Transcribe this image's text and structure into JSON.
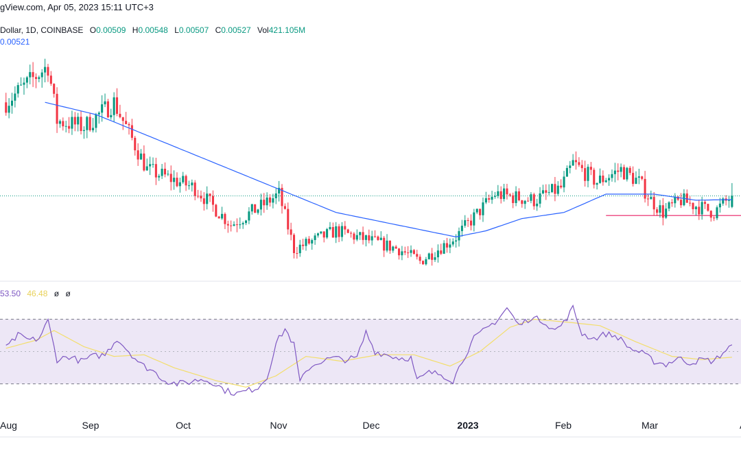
{
  "header": {
    "site_datetime": "gView.com, Apr 05, 2023 15:11 UTC+3"
  },
  "legend": {
    "symbol": "Dollar, 1D, COINBASE",
    "open_label": "O",
    "open": "0.00509",
    "high_label": "H",
    "high": "0.00548",
    "low_label": "L",
    "low": "0.00507",
    "close_label": "C",
    "close": "0.00527",
    "vol_label": "Vol",
    "vol": "421.105M",
    "ma_value": "0.00521"
  },
  "rsi_legend": {
    "rsi_value": "53.50",
    "ma_value": "46.48",
    "val3": "ø",
    "val4": "ø"
  },
  "colors": {
    "up": "#089981",
    "down": "#f23645",
    "ma_line": "#2962ff",
    "rsi_line": "#7e57c2",
    "rsi_ma_line": "#f3de6b",
    "rsi_band": "#ede7f6",
    "price_line": "#089981",
    "support_line": "#e91e63"
  },
  "chart_data": [
    {
      "type": "candlestick",
      "x_ticks": [
        "Aug",
        "Sep",
        "Oct",
        "Nov",
        "Dec",
        "2023",
        "Feb",
        "Mar",
        "Apr"
      ],
      "last_price": 0.00527,
      "moving_average_last": 0.00521,
      "support_level": 0.00495,
      "ohlc_last": {
        "open": 0.00509,
        "high": 0.00548,
        "low": 0.00507,
        "close": 0.00527,
        "volume": "421.105M"
      },
      "close_path": [
        {
          "day": 0,
          "close": 0.0068
        },
        {
          "day": 14,
          "close": 0.0074
        },
        {
          "day": 17,
          "close": 0.0065
        },
        {
          "day": 26,
          "close": 0.0064
        },
        {
          "day": 36,
          "close": 0.0068
        },
        {
          "day": 47,
          "close": 0.0057
        },
        {
          "day": 63,
          "close": 0.0054
        },
        {
          "day": 75,
          "close": 0.0048
        },
        {
          "day": 85,
          "close": 0.0051
        },
        {
          "day": 91,
          "close": 0.0053
        },
        {
          "day": 96,
          "close": 0.0044
        },
        {
          "day": 110,
          "close": 0.0047
        },
        {
          "day": 117,
          "close": 0.0046
        },
        {
          "day": 131,
          "close": 0.0044
        },
        {
          "day": 138,
          "close": 0.0042
        },
        {
          "day": 150,
          "close": 0.0046
        },
        {
          "day": 163,
          "close": 0.0053
        },
        {
          "day": 176,
          "close": 0.0052
        },
        {
          "day": 185,
          "close": 0.0054
        },
        {
          "day": 189,
          "close": 0.0058
        },
        {
          "day": 197,
          "close": 0.0055
        },
        {
          "day": 205,
          "close": 0.0057
        },
        {
          "day": 211,
          "close": 0.0055
        },
        {
          "day": 215,
          "close": 0.0052
        },
        {
          "day": 219,
          "close": 0.005
        },
        {
          "day": 225,
          "close": 0.0052
        },
        {
          "day": 236,
          "close": 0.005
        },
        {
          "day": 242,
          "close": 0.00527
        }
      ],
      "ma_path": [
        {
          "day": 13,
          "value": 0.0068
        },
        {
          "day": 30,
          "value": 0.0066
        },
        {
          "day": 50,
          "value": 0.0062
        },
        {
          "day": 70,
          "value": 0.0058
        },
        {
          "day": 90,
          "value": 0.0054
        },
        {
          "day": 110,
          "value": 0.005
        },
        {
          "day": 130,
          "value": 0.0048
        },
        {
          "day": 150,
          "value": 0.0046
        },
        {
          "day": 160,
          "value": 0.0047
        },
        {
          "day": 172,
          "value": 0.0049
        },
        {
          "day": 186,
          "value": 0.005
        },
        {
          "day": 200,
          "value": 0.0053
        },
        {
          "day": 216,
          "value": 0.0053
        },
        {
          "day": 230,
          "value": 0.0052
        },
        {
          "day": 242,
          "value": 0.00521
        }
      ]
    },
    {
      "type": "line",
      "indicator": "RSI",
      "levels": [
        70,
        50,
        30
      ],
      "rsi_last": 53.5,
      "rsi_ma_last": 46.48,
      "rsi_path": [
        {
          "day": 0,
          "value": 52
        },
        {
          "day": 4,
          "value": 60
        },
        {
          "day": 8,
          "value": 57
        },
        {
          "day": 11,
          "value": 58
        },
        {
          "day": 14,
          "value": 69
        },
        {
          "day": 17,
          "value": 45
        },
        {
          "day": 21,
          "value": 47
        },
        {
          "day": 25,
          "value": 44
        },
        {
          "day": 29,
          "value": 47
        },
        {
          "day": 33,
          "value": 48
        },
        {
          "day": 37,
          "value": 58
        },
        {
          "day": 41,
          "value": 50
        },
        {
          "day": 45,
          "value": 42
        },
        {
          "day": 49,
          "value": 38
        },
        {
          "day": 53,
          "value": 32
        },
        {
          "day": 57,
          "value": 30
        },
        {
          "day": 61,
          "value": 31
        },
        {
          "day": 65,
          "value": 33
        },
        {
          "day": 69,
          "value": 31
        },
        {
          "day": 73,
          "value": 26
        },
        {
          "day": 77,
          "value": 24
        },
        {
          "day": 81,
          "value": 26
        },
        {
          "day": 84,
          "value": 28
        },
        {
          "day": 87,
          "value": 34
        },
        {
          "day": 90,
          "value": 55
        },
        {
          "day": 93,
          "value": 64
        },
        {
          "day": 96,
          "value": 54
        },
        {
          "day": 98,
          "value": 31
        },
        {
          "day": 101,
          "value": 40
        },
        {
          "day": 105,
          "value": 44
        },
        {
          "day": 109,
          "value": 46
        },
        {
          "day": 113,
          "value": 45
        },
        {
          "day": 117,
          "value": 46
        },
        {
          "day": 120,
          "value": 62
        },
        {
          "day": 123,
          "value": 50
        },
        {
          "day": 127,
          "value": 48
        },
        {
          "day": 131,
          "value": 46
        },
        {
          "day": 135,
          "value": 46
        },
        {
          "day": 137,
          "value": 32
        },
        {
          "day": 141,
          "value": 37
        },
        {
          "day": 145,
          "value": 36
        },
        {
          "day": 149,
          "value": 32
        },
        {
          "day": 152,
          "value": 44
        },
        {
          "day": 156,
          "value": 58
        },
        {
          "day": 160,
          "value": 64
        },
        {
          "day": 164,
          "value": 70
        },
        {
          "day": 167,
          "value": 77
        },
        {
          "day": 171,
          "value": 66
        },
        {
          "day": 175,
          "value": 71
        },
        {
          "day": 179,
          "value": 69
        },
        {
          "day": 183,
          "value": 63
        },
        {
          "day": 186,
          "value": 68
        },
        {
          "day": 189,
          "value": 77
        },
        {
          "day": 192,
          "value": 61
        },
        {
          "day": 196,
          "value": 58
        },
        {
          "day": 200,
          "value": 61
        },
        {
          "day": 204,
          "value": 59
        },
        {
          "day": 208,
          "value": 52
        },
        {
          "day": 212,
          "value": 49
        },
        {
          "day": 216,
          "value": 44
        },
        {
          "day": 220,
          "value": 42
        },
        {
          "day": 224,
          "value": 46
        },
        {
          "day": 228,
          "value": 43
        },
        {
          "day": 232,
          "value": 45
        },
        {
          "day": 236,
          "value": 44
        },
        {
          "day": 240,
          "value": 51
        },
        {
          "day": 242,
          "value": 53.5
        }
      ],
      "rsi_ma_path": [
        {
          "day": 0,
          "value": 52
        },
        {
          "day": 10,
          "value": 57
        },
        {
          "day": 16,
          "value": 63
        },
        {
          "day": 26,
          "value": 53
        },
        {
          "day": 36,
          "value": 47
        },
        {
          "day": 46,
          "value": 48
        },
        {
          "day": 56,
          "value": 40
        },
        {
          "day": 70,
          "value": 32
        },
        {
          "day": 80,
          "value": 28
        },
        {
          "day": 90,
          "value": 35
        },
        {
          "day": 100,
          "value": 47
        },
        {
          "day": 112,
          "value": 44
        },
        {
          "day": 124,
          "value": 48
        },
        {
          "day": 136,
          "value": 48
        },
        {
          "day": 148,
          "value": 41
        },
        {
          "day": 158,
          "value": 50
        },
        {
          "day": 168,
          "value": 65
        },
        {
          "day": 176,
          "value": 70
        },
        {
          "day": 188,
          "value": 68
        },
        {
          "day": 198,
          "value": 66
        },
        {
          "day": 210,
          "value": 56
        },
        {
          "day": 222,
          "value": 47
        },
        {
          "day": 232,
          "value": 45
        },
        {
          "day": 242,
          "value": 46.48
        }
      ]
    }
  ]
}
